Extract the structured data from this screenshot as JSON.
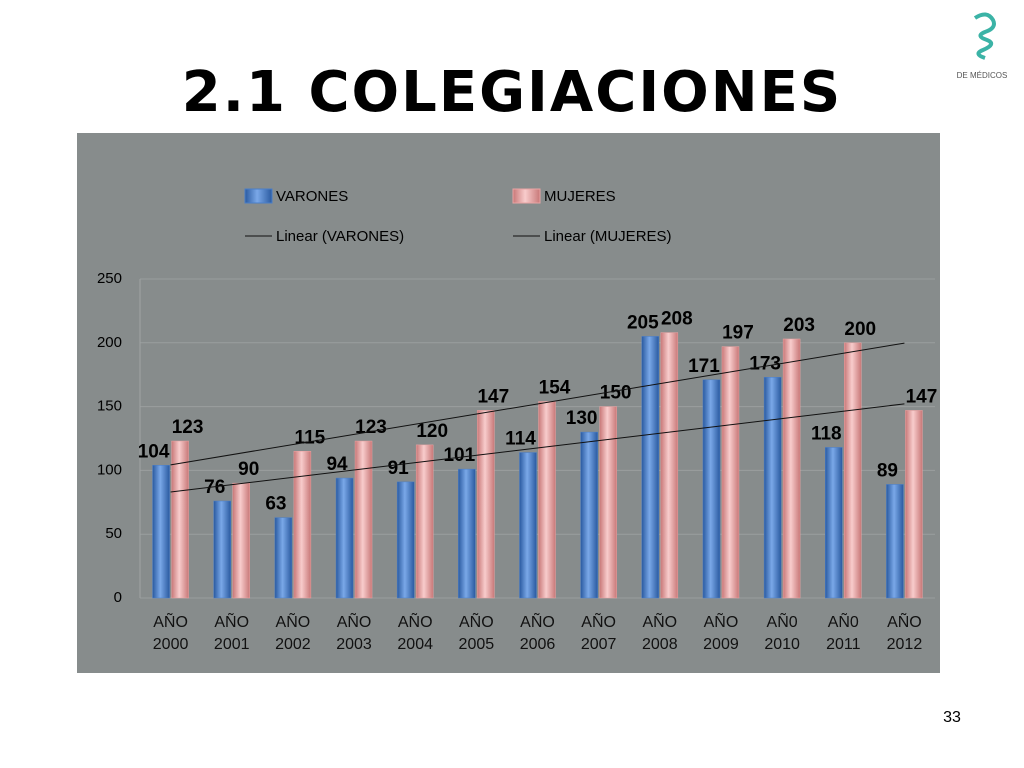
{
  "page_number": "33",
  "logo_text": "DE MÉDICOS",
  "chart_data": {
    "type": "bar",
    "title": "2.1 COLEGIACIONES",
    "categories": [
      "AÑO 2000",
      "AÑO 2001",
      "AÑO 2002",
      "AÑO 2003",
      "AÑO 2004",
      "AÑO 2005",
      "AÑO 2006",
      "AÑO 2007",
      "AÑO 2008",
      "AÑO 2009",
      "AÑ0 2010",
      "AÑ0 2011",
      "AÑO 2012"
    ],
    "series": [
      {
        "name": "VARONES",
        "color": "#4a7ec8",
        "trendline_name": "Linear (VARONES)",
        "values": [
          104,
          76,
          63,
          94,
          91,
          101,
          114,
          130,
          205,
          171,
          173,
          118,
          89
        ]
      },
      {
        "name": "MUJERES",
        "color": "#eaa3a3",
        "trendline_name": "Linear (MUJERES)",
        "values": [
          123,
          90,
          115,
          123,
          120,
          147,
          154,
          150,
          208,
          197,
          203,
          200,
          147
        ]
      }
    ],
    "ylim": [
      0,
      250
    ],
    "yticks": [
      0,
      50,
      100,
      150,
      200,
      250
    ],
    "grid": true
  }
}
